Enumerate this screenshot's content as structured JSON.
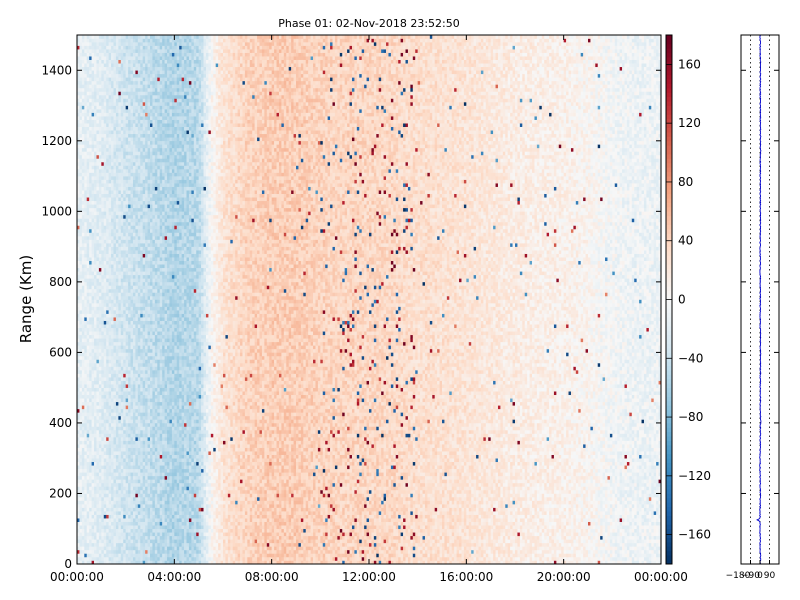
{
  "chart_data": [
    {
      "type": "heatmap",
      "title": "Phase 01: 02-Nov-2018 23:52:50",
      "xlabel": "",
      "ylabel": "Range (Km)",
      "x_unit": "time of day",
      "xlim": [
        "00:00:00",
        "24:00:00"
      ],
      "x_ticks": [
        "00:00:00",
        "04:00:00",
        "08:00:00",
        "12:00:00",
        "16:00:00",
        "20:00:00",
        "00:00:00"
      ],
      "ylim": [
        0,
        1500
      ],
      "y_ticks": [
        0,
        200,
        400,
        600,
        800,
        1000,
        1200,
        1400
      ],
      "colormap": "RdBu_r",
      "clim": [
        -180,
        180
      ],
      "colorbar_ticks": [
        -160,
        -120,
        -80,
        -40,
        0,
        40,
        80,
        120,
        160
      ],
      "colorbar_tick_labels": [
        "−160",
        "−120",
        "−80",
        "−40",
        "0",
        "40",
        "80",
        "120",
        "160"
      ],
      "grid": false,
      "colors": {
        "negative_end": "#053061",
        "mid": "#f7f7f7",
        "positive_end": "#67001f"
      },
      "phase_profile_by_hour": [
        {
          "hour": 0,
          "phase_deg": -15
        },
        {
          "hour": 1,
          "phase_deg": -22
        },
        {
          "hour": 2,
          "phase_deg": -35
        },
        {
          "hour": 3,
          "phase_deg": -45
        },
        {
          "hour": 4,
          "phase_deg": -55
        },
        {
          "hour": 5,
          "phase_deg": -50
        },
        {
          "hour": 5.5,
          "phase_deg": 0
        },
        {
          "hour": 6,
          "phase_deg": 25
        },
        {
          "hour": 7,
          "phase_deg": 40
        },
        {
          "hour": 8,
          "phase_deg": 45
        },
        {
          "hour": 9,
          "phase_deg": 45
        },
        {
          "hour": 10,
          "phase_deg": 40
        },
        {
          "hour": 11,
          "phase_deg": 38
        },
        {
          "hour": 12,
          "phase_deg": 38
        },
        {
          "hour": 13,
          "phase_deg": 35
        },
        {
          "hour": 14,
          "phase_deg": 30
        },
        {
          "hour": 15,
          "phase_deg": 28
        },
        {
          "hour": 16,
          "phase_deg": 25
        },
        {
          "hour": 17,
          "phase_deg": 20
        },
        {
          "hour": 18,
          "phase_deg": 15
        },
        {
          "hour": 19,
          "phase_deg": 12
        },
        {
          "hour": 20,
          "phase_deg": 10
        },
        {
          "hour": 21,
          "phase_deg": 5
        },
        {
          "hour": 22,
          "phase_deg": -5
        },
        {
          "hour": 23,
          "phase_deg": -10
        },
        {
          "hour": 24,
          "phase_deg": -10
        }
      ],
      "noisy_band_hours": [
        10,
        14
      ]
    },
    {
      "type": "line",
      "xlabel": "",
      "ylabel": "",
      "xlim": [
        -180,
        180
      ],
      "x_tick_labels": [
        "−180",
        "−90",
        "0",
        "90"
      ],
      "ylim": [
        0,
        1500
      ],
      "reference_lines_x": [
        -90,
        0,
        90
      ],
      "line_color": "#0000cc",
      "series": [
        {
          "points": [
            {
              "range_km": 0,
              "phase_deg": 5
            },
            {
              "range_km": 60,
              "phase_deg": 2
            },
            {
              "range_km": 120,
              "phase_deg": 0
            },
            {
              "range_km": 125,
              "phase_deg": -25
            },
            {
              "range_km": 130,
              "phase_deg": 0
            },
            {
              "range_km": 200,
              "phase_deg": 3
            },
            {
              "range_km": 300,
              "phase_deg": 0
            },
            {
              "range_km": 400,
              "phase_deg": 5
            },
            {
              "range_km": 500,
              "phase_deg": 3
            },
            {
              "range_km": 600,
              "phase_deg": 4
            },
            {
              "range_km": 700,
              "phase_deg": 2
            },
            {
              "range_km": 800,
              "phase_deg": 3
            },
            {
              "range_km": 900,
              "phase_deg": 2
            },
            {
              "range_km": 1000,
              "phase_deg": 4
            },
            {
              "range_km": 1100,
              "phase_deg": 3
            },
            {
              "range_km": 1200,
              "phase_deg": 5
            },
            {
              "range_km": 1300,
              "phase_deg": 3
            },
            {
              "range_km": 1400,
              "phase_deg": 4
            },
            {
              "range_km": 1500,
              "phase_deg": 2
            }
          ]
        }
      ]
    }
  ]
}
